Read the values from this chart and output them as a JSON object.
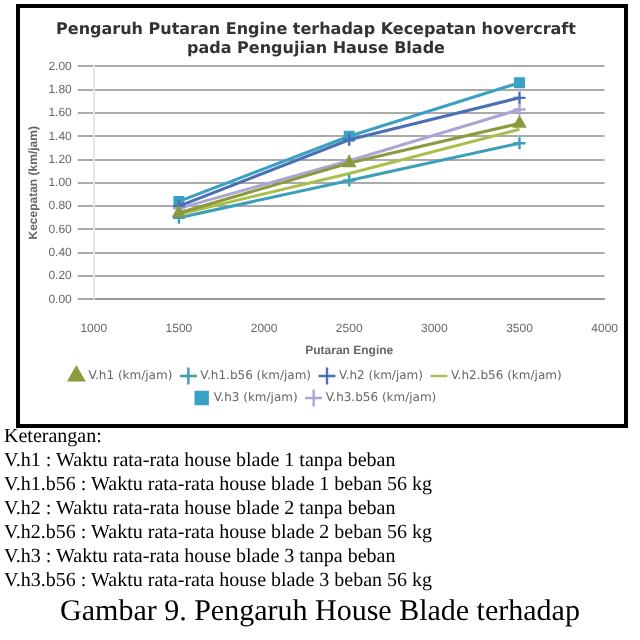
{
  "chart_data": {
    "type": "line",
    "title": [
      "Pengaruh Putaran Engine terhadap Kecepatan hovercraft",
      "pada Pengujian Hause Blade"
    ],
    "xlabel": "Putaran Engine",
    "ylabel": "Kecepatan (km/jam)",
    "x": [
      1500,
      2500,
      3500
    ],
    "series": [
      {
        "name": "V.h1 (km/jam)",
        "color": "#8a9a3c",
        "marker": "triangle",
        "values": [
          0.74,
          1.17,
          1.51
        ]
      },
      {
        "name": "V.h1.b56 (km/jam)",
        "color": "#3a9fb8",
        "marker": "cross",
        "values": [
          0.7,
          1.02,
          1.34
        ]
      },
      {
        "name": "V.h2 (km/jam)",
        "color": "#4a6fb5",
        "marker": "cross",
        "values": [
          0.8,
          1.37,
          1.73
        ]
      },
      {
        "name": "V.h2.b56 (km/jam)",
        "color": "#a8c04a",
        "marker": "none",
        "values": [
          0.73,
          1.08,
          1.46
        ]
      },
      {
        "name": "V.h3 (km/jam)",
        "color": "#3aa0c4",
        "marker": "square",
        "values": [
          0.84,
          1.4,
          1.86
        ]
      },
      {
        "name": "V.h3.b56 (km/jam)",
        "color": "#a9a6d6",
        "marker": "cross",
        "values": [
          0.78,
          1.19,
          1.63
        ]
      }
    ],
    "xlim": [
      1000,
      4000
    ],
    "xticks": [
      1000,
      1500,
      2000,
      2500,
      3000,
      3500,
      4000
    ],
    "ylim": [
      0,
      2
    ],
    "yticks": [
      {
        "value": 0,
        "label": "0.00"
      },
      {
        "value": 0.2,
        "label": "0.20"
      },
      {
        "value": 0.4,
        "label": "0.40"
      },
      {
        "value": 0.6,
        "label": "0.60"
      },
      {
        "value": 0.8,
        "label": "0.80"
      },
      {
        "value": 1,
        "label": "1.00"
      },
      {
        "value": 1.2,
        "label": "1.20"
      },
      {
        "value": 1.4,
        "label": "1.40"
      },
      {
        "value": 1.6,
        "label": "1.60"
      },
      {
        "value": 1.8,
        "label": "1.80"
      },
      {
        "value": 2,
        "label": "2.00"
      }
    ],
    "grid": "y",
    "legend": "bottom",
    "annotations": [
      "Keterangan:",
      "V.h1 : Waktu rata-rata house blade 1 tanpa beban",
      "V.h1.b56 : Waktu rata-rata house blade 1 beban 56 kg",
      "V.h2 : Waktu rata-rata house blade 2 tanpa beban",
      "V.h2.b56 : Waktu rata-rata house blade 2 beban 56 kg",
      "V.h3 : Waktu rata-rata house blade 3 tanpa beban",
      "V.h3.b56 : Waktu rata-rata house blade 3 beban 56 kg",
      "Gambar 9. Pengaruh House Blade terhadap"
    ]
  }
}
